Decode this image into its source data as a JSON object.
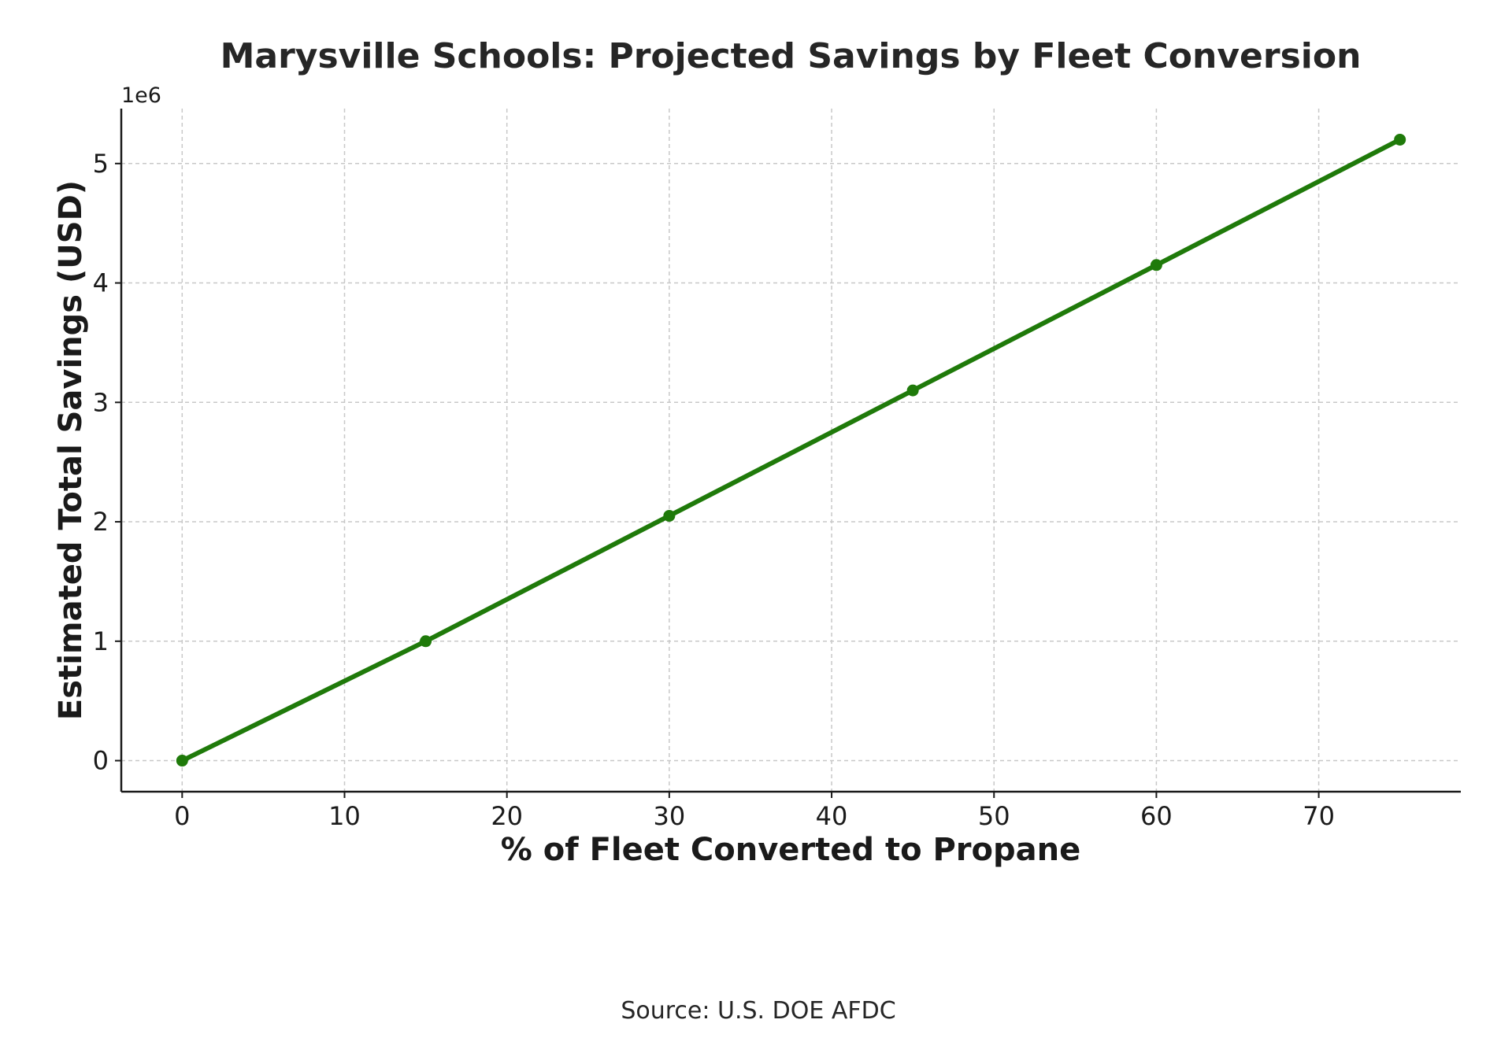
{
  "chart_data": {
    "type": "line",
    "title": "Marysville Schools: Projected Savings by Fleet Conversion",
    "xlabel": "% of Fleet Converted to Propane",
    "ylabel": "Estimated Total Savings (USD)",
    "y_offset_label": "1e6",
    "source": "Source: U.S. DOE AFDC",
    "x": [
      0,
      15,
      30,
      45,
      60,
      75
    ],
    "series": [
      {
        "values": [
          0,
          1000000,
          2050000,
          3100000,
          4150000,
          5200000
        ],
        "color": "#1f7a0a"
      }
    ],
    "xlim": [
      -3.75,
      78.75
    ],
    "ylim": [
      -260000,
      5460000
    ],
    "x_ticks": [
      0,
      10,
      20,
      30,
      40,
      50,
      60,
      70
    ],
    "x_tick_labels": [
      "0",
      "10",
      "20",
      "30",
      "40",
      "50",
      "60",
      "70"
    ],
    "y_ticks": [
      0,
      1000000,
      2000000,
      3000000,
      4000000,
      5000000
    ],
    "y_tick_labels": [
      "0",
      "1",
      "2",
      "3",
      "4",
      "5"
    ],
    "grid": true,
    "legend": "none"
  }
}
